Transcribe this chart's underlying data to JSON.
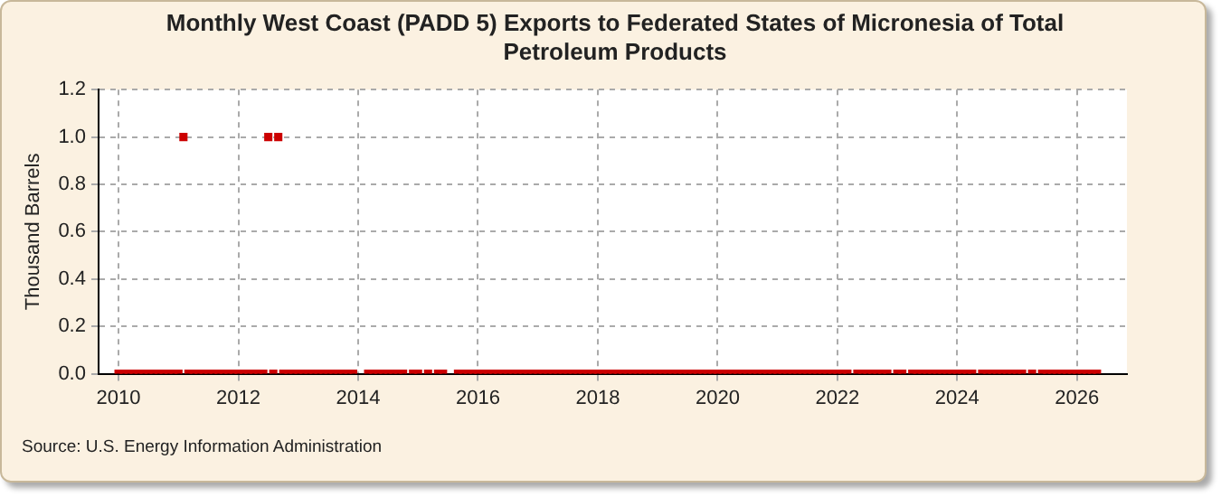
{
  "chart_data": {
    "type": "scatter",
    "title": "Monthly West Coast (PADD 5) Exports to Federated States of Micronesia of Total Petroleum Products",
    "ylabel": "Thousand Barrels",
    "annotations": [
      "Source: U.S. Energy Information Administration"
    ],
    "x": [
      "2010-01",
      "2010-02",
      "2010-03",
      "2010-04",
      "2010-05",
      "2010-06",
      "2010-07",
      "2010-08",
      "2010-09",
      "2010-10",
      "2010-11",
      "2010-12",
      "2011-01",
      "2011-02",
      "2011-03",
      "2011-04",
      "2011-05",
      "2011-06",
      "2011-07",
      "2011-08",
      "2011-09",
      "2011-10",
      "2011-11",
      "2011-12",
      "2012-01",
      "2012-02",
      "2012-03",
      "2012-04",
      "2012-05",
      "2012-06",
      "2012-07",
      "2012-08",
      "2012-09",
      "2012-10",
      "2012-11",
      "2012-12",
      "2013-01",
      "2013-02",
      "2013-03",
      "2013-04",
      "2013-05",
      "2013-06",
      "2013-07",
      "2013-08",
      "2013-09",
      "2013-10",
      "2013-11",
      "2013-12",
      "2014-01",
      "2014-02",
      "2014-03",
      "2014-04",
      "2014-05",
      "2014-06",
      "2014-07",
      "2014-08",
      "2014-09",
      "2014-10",
      "2014-11",
      "2014-12",
      "2015-01",
      "2015-02",
      "2015-03",
      "2015-04",
      "2015-05",
      "2015-06",
      "2015-07",
      "2015-08",
      "2015-09",
      "2015-10",
      "2015-11",
      "2015-12",
      "2016-01",
      "2016-02",
      "2016-03",
      "2016-04",
      "2016-05",
      "2016-06",
      "2016-07",
      "2016-08",
      "2016-09",
      "2016-10",
      "2016-11",
      "2016-12",
      "2017-01",
      "2017-02",
      "2017-03",
      "2017-04",
      "2017-05",
      "2017-06",
      "2017-07",
      "2017-08",
      "2017-09",
      "2017-10",
      "2017-11",
      "2017-12",
      "2018-01",
      "2018-02",
      "2018-03",
      "2018-04",
      "2018-05",
      "2018-06",
      "2018-07",
      "2018-08",
      "2018-09",
      "2018-10",
      "2018-11",
      "2018-12",
      "2019-01",
      "2019-02",
      "2019-03",
      "2019-04",
      "2019-05",
      "2019-06",
      "2019-07",
      "2019-08",
      "2019-09",
      "2019-10",
      "2019-11",
      "2019-12",
      "2020-01",
      "2020-02",
      "2020-03",
      "2020-04",
      "2020-05",
      "2020-06",
      "2020-07",
      "2020-08",
      "2020-09",
      "2020-10",
      "2020-11",
      "2020-12",
      "2021-01",
      "2021-02",
      "2021-03",
      "2021-04",
      "2021-05",
      "2021-06",
      "2021-07",
      "2021-08",
      "2021-09",
      "2021-10",
      "2021-11",
      "2021-12",
      "2022-01",
      "2022-02",
      "2022-03",
      "2022-04",
      "2022-05",
      "2022-06",
      "2022-07",
      "2022-08",
      "2022-09",
      "2022-10",
      "2022-11",
      "2022-12",
      "2023-01",
      "2023-02",
      "2023-03",
      "2023-04",
      "2023-05",
      "2023-06",
      "2023-07",
      "2023-08",
      "2023-09",
      "2023-10",
      "2023-11",
      "2023-12",
      "2024-01",
      "2024-02",
      "2024-03",
      "2024-04",
      "2024-05",
      "2024-06",
      "2024-07",
      "2024-08",
      "2024-09",
      "2024-10",
      "2024-11",
      "2024-12",
      "2025-01",
      "2025-02",
      "2025-03",
      "2025-04",
      "2025-05",
      "2025-06",
      "2025-07",
      "2025-08",
      "2025-09",
      "2025-10",
      "2025-11",
      "2025-12",
      "2026-01",
      "2026-02",
      "2026-03",
      "2026-04",
      "2026-05"
    ],
    "values": [
      0,
      0,
      0,
      0,
      0,
      0,
      0,
      0,
      0,
      0,
      0,
      0,
      0,
      1,
      0,
      0,
      0,
      0,
      0,
      0,
      0,
      0,
      0,
      0,
      0,
      0,
      0,
      0,
      0,
      0,
      1,
      0,
      1,
      0,
      0,
      0,
      0,
      0,
      0,
      0,
      0,
      0,
      0,
      0,
      0,
      0,
      0,
      0,
      null,
      null,
      0,
      0,
      0,
      0,
      0,
      0,
      0,
      0,
      null,
      0,
      0,
      null,
      0,
      null,
      0,
      0,
      null,
      null,
      0,
      0,
      0,
      0,
      0,
      0,
      0,
      0,
      0,
      0,
      0,
      0,
      0,
      0,
      0,
      0,
      0,
      0,
      0,
      0,
      0,
      0,
      0,
      0,
      0,
      0,
      0,
      0,
      0,
      0,
      0,
      0,
      0,
      0,
      0,
      0,
      0,
      0,
      0,
      0,
      0,
      0,
      0,
      0,
      0,
      0,
      0,
      0,
      0,
      0,
      0,
      0,
      0,
      0,
      0,
      0,
      0,
      0,
      0,
      0,
      0,
      0,
      0,
      0,
      0,
      0,
      0,
      0,
      0,
      0,
      0,
      0,
      0,
      0,
      0,
      0,
      0,
      0,
      0,
      null,
      0,
      0,
      0,
      0,
      0,
      0,
      0,
      null,
      0,
      0,
      null,
      0,
      0,
      0,
      0,
      0,
      0,
      0,
      0,
      0,
      0,
      0,
      0,
      0,
      null,
      0,
      0,
      0,
      0,
      0,
      0,
      0,
      0,
      0,
      null,
      0,
      null,
      0,
      0,
      0,
      0,
      0,
      0,
      0,
      0,
      0,
      0,
      0,
      0
    ],
    "color": "#cc0000",
    "marker": "square",
    "grid": true,
    "xlim": [
      "2009-09",
      "2026-11"
    ],
    "xticks": [
      "2010",
      "2012",
      "2014",
      "2016",
      "2018",
      "2020",
      "2022",
      "2024",
      "2026"
    ],
    "ylim": [
      0,
      1.2
    ],
    "yticks": [
      {
        "value": 0,
        "label": "0.0"
      },
      {
        "value": 0.2,
        "label": "0.2"
      },
      {
        "value": 0.4,
        "label": "0.4"
      },
      {
        "value": 0.6,
        "label": "0.6"
      },
      {
        "value": 0.8,
        "label": "0.8"
      },
      {
        "value": 1,
        "label": "1.0"
      },
      {
        "value": 1.2,
        "label": "1.2"
      }
    ]
  }
}
